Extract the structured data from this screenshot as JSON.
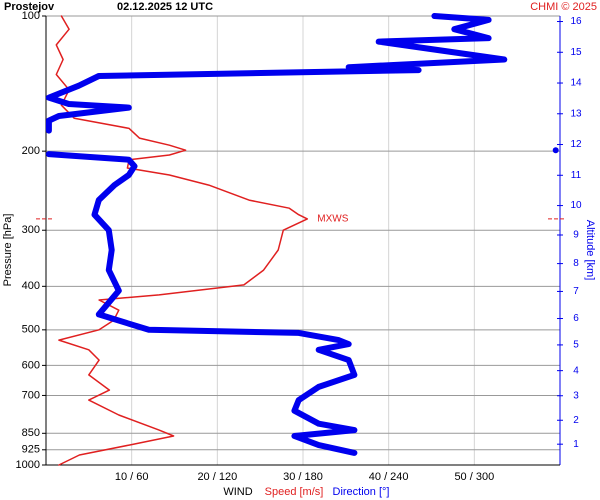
{
  "chart_data": {
    "type": "wind-profile",
    "title": "Prostejov",
    "subtitle": "02.12.2025 12 UTC",
    "credit": "CHMI © 2025",
    "y_label": "Pressure [hPa]",
    "y2_label": "Altitude [km]",
    "x_label": "WIND",
    "ylim": [
      100,
      1000
    ],
    "ylog": true,
    "yinverted": true,
    "yticks": [
      100,
      200,
      300,
      400,
      500,
      600,
      700,
      850,
      925,
      1000
    ],
    "xlim": [
      0,
      60
    ],
    "x2lim": [
      0,
      360
    ],
    "xticks": [
      {
        "value": 10,
        "label": "10 / 60"
      },
      {
        "value": 20,
        "label": "20 / 120"
      },
      {
        "value": 30,
        "label": "30 / 180"
      },
      {
        "value": 40,
        "label": "40 / 240"
      },
      {
        "value": 50,
        "label": "50 / 300"
      }
    ],
    "y2ticks": [
      1,
      2,
      3,
      4,
      5,
      6,
      7,
      8,
      9,
      10,
      11,
      12,
      13,
      14,
      15,
      16
    ],
    "grid": true,
    "annotation": {
      "label": "MXWS",
      "pressure": 283,
      "speed": 30.5,
      "color": "#e02020"
    },
    "series": [
      {
        "name": "Speed [m/s]",
        "color": "#e02020",
        "axis": "x",
        "pressure": [
          100,
          107,
          116,
          125,
          135,
          146,
          158,
          169,
          178,
          187,
          194,
          199,
          204,
          209,
          218,
          226,
          238,
          257,
          268,
          277,
          283,
          300,
          332,
          368,
          397,
          418,
          429,
          452,
          476,
          500,
          527,
          554,
          584,
          630,
          681,
          717,
          774,
          836,
          862,
          903,
          950,
          1000
        ],
        "values": [
          1.8,
          2.7,
          1.2,
          2,
          1.2,
          2.7,
          1.8,
          3.3,
          9.7,
          10.9,
          14.4,
          16.3,
          14.4,
          9.7,
          9.5,
          14.4,
          19,
          23.7,
          28.4,
          29.5,
          30.5,
          27.7,
          27.1,
          25.4,
          23.1,
          13.2,
          6.2,
          8.5,
          7.9,
          6.2,
          1.5,
          5,
          6.2,
          5,
          7.4,
          5,
          8.5,
          13.2,
          14.9,
          9.7,
          3.9,
          1.5
        ]
      },
      {
        "name": "Direction [°]",
        "color": "#0000ee",
        "axis": "x2",
        "pressure": [
          100,
          102,
          107,
          112,
          114,
          125,
          130,
          132,
          136,
          143,
          152,
          157,
          160,
          167,
          171,
          180,
          199,
          199,
          199,
          203,
          203,
          209,
          216,
          226,
          238,
          257,
          277,
          300,
          332,
          368,
          409,
          462,
          500,
          508,
          527,
          538,
          554,
          584,
          630,
          670,
          717,
          757,
          809,
          836,
          862,
          903,
          940
        ],
        "values": [
          272,
          310,
          286,
          310,
          233,
          321,
          212,
          261,
          37,
          23,
          2,
          16,
          58,
          9,
          2,
          2,
          null,
          357,
          null,
          2,
          2,
          58,
          62,
          58,
          48,
          37,
          34,
          44,
          46,
          44,
          51,
          37,
          72,
          177,
          205,
          212,
          191,
          212,
          216,
          191,
          177,
          174,
          191,
          216,
          174,
          191,
          216
        ]
      }
    ]
  }
}
